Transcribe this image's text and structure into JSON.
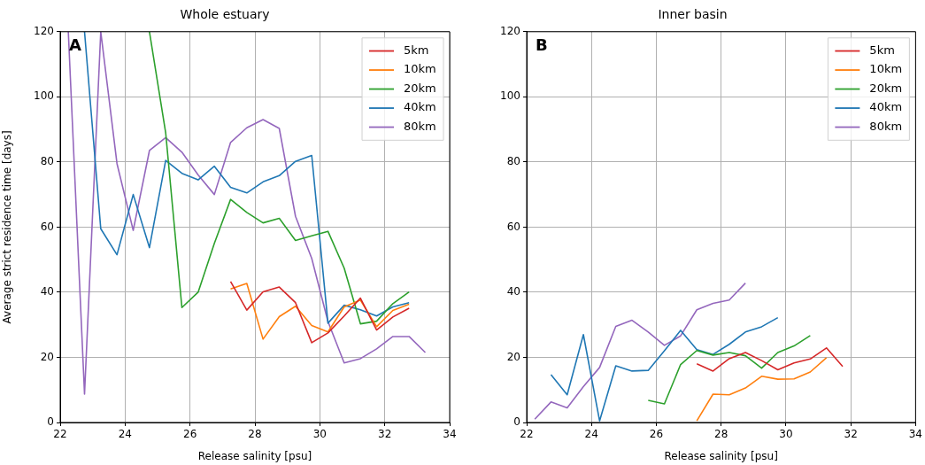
{
  "chart_data": [
    {
      "type": "line",
      "title": "Whole estuary",
      "xlabel": "Release salinity [psu]",
      "ylabel": "Average strict residence time [days]",
      "annotations": [
        "A"
      ],
      "xlim": [
        22,
        34
      ],
      "xticks": [
        22,
        24,
        26,
        28,
        30,
        32,
        34
      ],
      "ylim": [
        0,
        120
      ],
      "yticks": [
        0,
        20,
        40,
        60,
        80,
        100,
        120
      ],
      "grid": true,
      "legend": "top right",
      "marker": "none",
      "series": [
        {
          "name": "5km",
          "color": "#d62728",
          "x": [
            27.25,
            27.75,
            28.25,
            28.75,
            29.25,
            29.75,
            30.25,
            30.75,
            31.25,
            31.75,
            32.25,
            32.75
          ],
          "values": [
            43.3,
            34.5,
            40.1,
            41.6,
            36.8,
            24.5,
            27.5,
            32.7,
            38.2,
            28.4,
            32.4,
            35.1
          ]
        },
        {
          "name": "10km",
          "color": "#ff7f0e",
          "x": [
            27.25,
            27.75,
            28.25,
            28.75,
            29.25,
            29.75,
            30.25,
            30.75,
            31.25,
            31.75,
            32.25,
            32.75
          ],
          "values": [
            41,
            42.7,
            25.6,
            32.5,
            35.7,
            29.8,
            27.8,
            35.5,
            37.6,
            29.4,
            34.4,
            36.3
          ]
        },
        {
          "name": "20km",
          "color": "#2ca02c",
          "x": [
            24.75,
            25.25,
            25.75,
            26.25,
            26.75,
            27.25,
            27.75,
            28.25,
            28.75,
            29.25,
            29.75,
            30.25,
            30.75,
            31.25,
            31.75,
            32.25,
            32.75
          ],
          "values": [
            120,
            89,
            35.3,
            40,
            55,
            68.5,
            64.5,
            61.3,
            62.7,
            55.9,
            57.3,
            58.7,
            47.4,
            30.3,
            31.1,
            36.5,
            40.1
          ]
        },
        {
          "name": "40km",
          "color": "#1f77b4",
          "x": [
            22.75,
            23.25,
            23.75,
            24.25,
            24.75,
            25.25,
            25.75,
            26.25,
            26.75,
            27.25,
            27.75,
            28.25,
            28.75,
            29.25,
            29.75,
            30.25,
            30.75,
            31.25,
            31.75,
            32.25,
            32.75
          ],
          "values": [
            120,
            59.5,
            51.5,
            70,
            53.7,
            80.5,
            76.5,
            74.5,
            78.7,
            72.2,
            70.5,
            73.9,
            75.8,
            80.2,
            82,
            30.5,
            36,
            34.6,
            32.7,
            35.5,
            36.8
          ]
        },
        {
          "name": "80km",
          "color": "#9467bd",
          "x": [
            22.25,
            22.75,
            23.25,
            23.75,
            24.25,
            24.75,
            25.25,
            25.75,
            26.25,
            26.75,
            27.25,
            27.75,
            28.25,
            28.75,
            29.25,
            29.75,
            30.25,
            30.75,
            31.25,
            31.75,
            32.25,
            32.75,
            33.25
          ],
          "values": [
            120,
            8.7,
            120,
            79.5,
            59,
            83.5,
            87.5,
            83,
            76,
            70,
            86,
            90.5,
            93,
            90.3,
            63.3,
            50.4,
            31,
            18.3,
            19.6,
            22.6,
            26.4,
            26.4,
            21.5
          ]
        }
      ]
    },
    {
      "type": "line",
      "title": "Inner basin",
      "xlabel": "Release salinity [psu]",
      "annotations": [
        "B"
      ],
      "xlim": [
        22,
        34
      ],
      "xticks": [
        22,
        24,
        26,
        28,
        30,
        32,
        34
      ],
      "ylim": [
        0,
        120
      ],
      "yticks": [
        0,
        20,
        40,
        60,
        80,
        100,
        120
      ],
      "grid": true,
      "legend": "top right",
      "marker": "none",
      "series": [
        {
          "name": "5km",
          "color": "#d62728",
          "x": [
            27.25,
            27.75,
            28.25,
            28.75,
            29.25,
            29.75,
            30.25,
            30.75,
            31.25,
            31.75
          ],
          "values": [
            18,
            15.8,
            19.6,
            21.5,
            19,
            16.2,
            18.3,
            19.5,
            22.9,
            17.2
          ]
        },
        {
          "name": "10km",
          "color": "#ff7f0e",
          "x": [
            27.25,
            27.75,
            28.25,
            28.75,
            29.25,
            29.75,
            30.25,
            30.75,
            31.25
          ],
          "values": [
            0.5,
            8.7,
            8.5,
            10.6,
            14.2,
            13.3,
            13.4,
            15.5,
            19.9
          ]
        },
        {
          "name": "20km",
          "color": "#2ca02c",
          "x": [
            25.75,
            26.25,
            26.75,
            27.25,
            27.75,
            28.25,
            28.75,
            29.25,
            29.75,
            30.25,
            30.75
          ],
          "values": [
            6.8,
            5.7,
            17.8,
            22.1,
            20.7,
            21.5,
            20.5,
            16.7,
            21.5,
            23.5,
            26.7
          ]
        },
        {
          "name": "40km",
          "color": "#1f77b4",
          "x": [
            22.75,
            23.25,
            23.75,
            24.25,
            24.75,
            25.25,
            25.75,
            26.25,
            26.75,
            27.25,
            27.75,
            28.25,
            28.75,
            29.25,
            29.75
          ],
          "values": [
            14.7,
            8.5,
            27,
            0.5,
            17.4,
            15.8,
            16,
            22,
            28.3,
            22.4,
            20.9,
            24,
            27.8,
            29.4,
            32.2
          ]
        },
        {
          "name": "80km",
          "color": "#9467bd",
          "x": [
            22.25,
            22.75,
            23.25,
            23.75,
            24.25,
            24.75,
            25.25,
            25.75,
            26.25,
            26.75,
            27.25,
            27.75,
            28.25,
            28.75
          ],
          "values": [
            1,
            6.3,
            4.5,
            11,
            16.9,
            29.5,
            31.4,
            27.8,
            23.7,
            26.6,
            34.6,
            36.6,
            37.6,
            42.8
          ]
        }
      ]
    }
  ]
}
